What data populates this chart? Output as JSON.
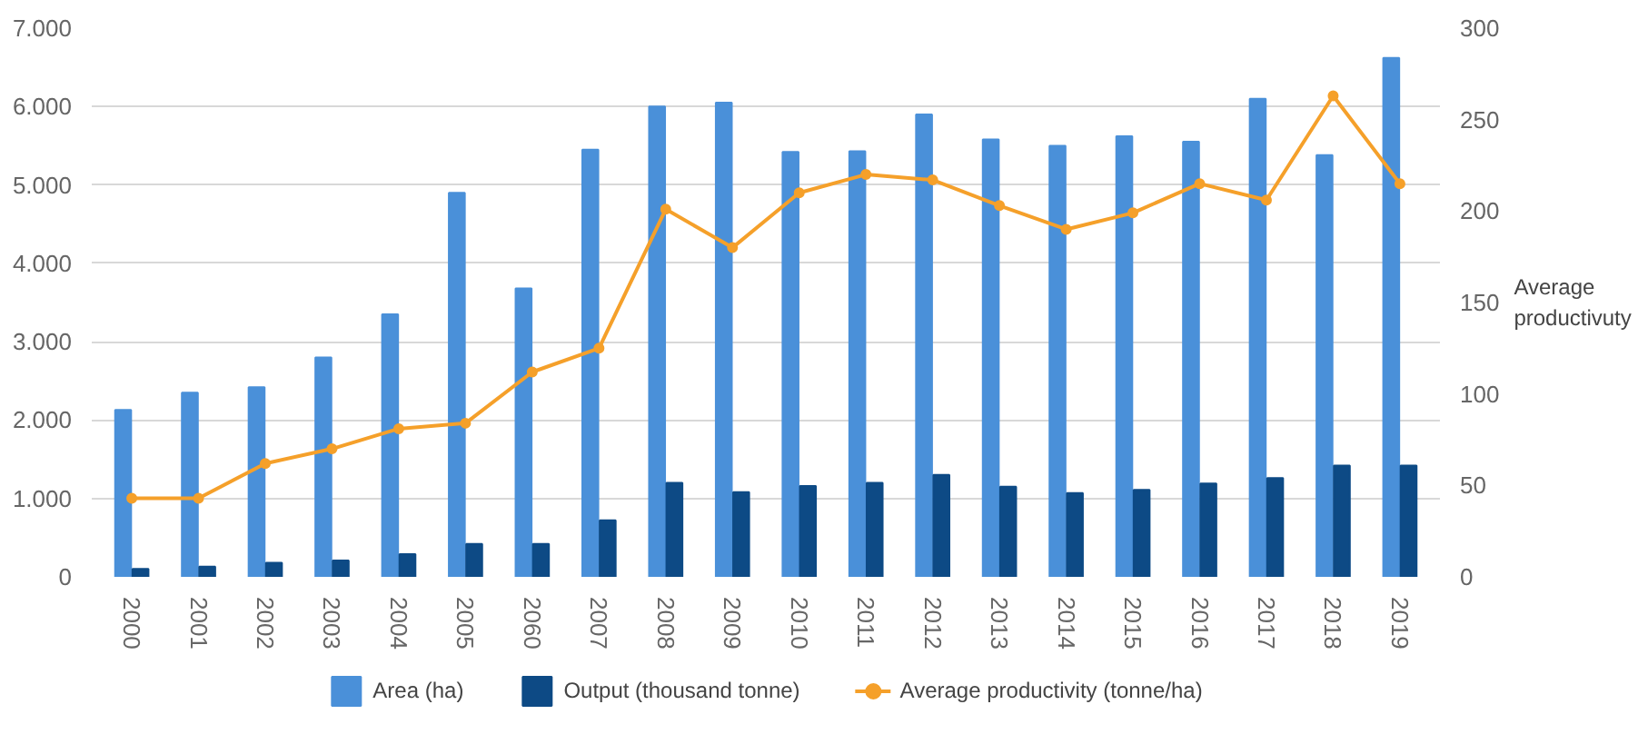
{
  "chart_data": {
    "type": "bar",
    "categories": [
      "2000",
      "2001",
      "2002",
      "2003",
      "2004",
      "2005",
      "2060",
      "2007",
      "2008",
      "2009",
      "2010",
      "2011",
      "2012",
      "2013",
      "2014",
      "2015",
      "2016",
      "2017",
      "2018",
      "2019"
    ],
    "series": [
      {
        "name": "Area (ha)",
        "color": "#4a90d9",
        "values": [
          2130,
          2350,
          2420,
          2800,
          3350,
          4900,
          3680,
          5450,
          6000,
          6050,
          5420,
          5430,
          5900,
          5580,
          5500,
          5620,
          5550,
          6100,
          5380,
          6620
        ]
      },
      {
        "name": "Output (thousand tonne)",
        "color": "#0d4a85",
        "values": [
          100,
          130,
          180,
          210,
          290,
          420,
          420,
          720,
          1200,
          1080,
          1160,
          1200,
          1300,
          1150,
          1070,
          1110,
          1190,
          1260,
          1420,
          1420
        ]
      },
      {
        "name": "Average productivity (tonne/ha)",
        "type": "line",
        "axis": "y2",
        "color": "#f5a02a",
        "marker": "circle",
        "values": [
          43,
          43,
          62,
          70,
          81,
          84,
          112,
          125,
          201,
          180,
          210,
          220,
          217,
          203,
          190,
          199,
          215,
          206,
          263,
          215
        ]
      }
    ],
    "ylim": [
      0,
      7000
    ],
    "yticks": [
      {
        "value": 0,
        "label": "0"
      },
      {
        "value": 1000,
        "label": "1.000"
      },
      {
        "value": 2000,
        "label": "2.000"
      },
      {
        "value": 3000,
        "label": "3.000"
      },
      {
        "value": 4000,
        "label": "4.000"
      },
      {
        "value": 5000,
        "label": "5.000"
      },
      {
        "value": 6000,
        "label": "6.000"
      },
      {
        "value": 7000,
        "label": "7.000"
      }
    ],
    "y2lim": [
      0,
      300
    ],
    "y2ticks": [
      0,
      50,
      100,
      150,
      200,
      250,
      300
    ],
    "y2label": "Average productivuty",
    "grid": "y",
    "legend": "bottom"
  }
}
